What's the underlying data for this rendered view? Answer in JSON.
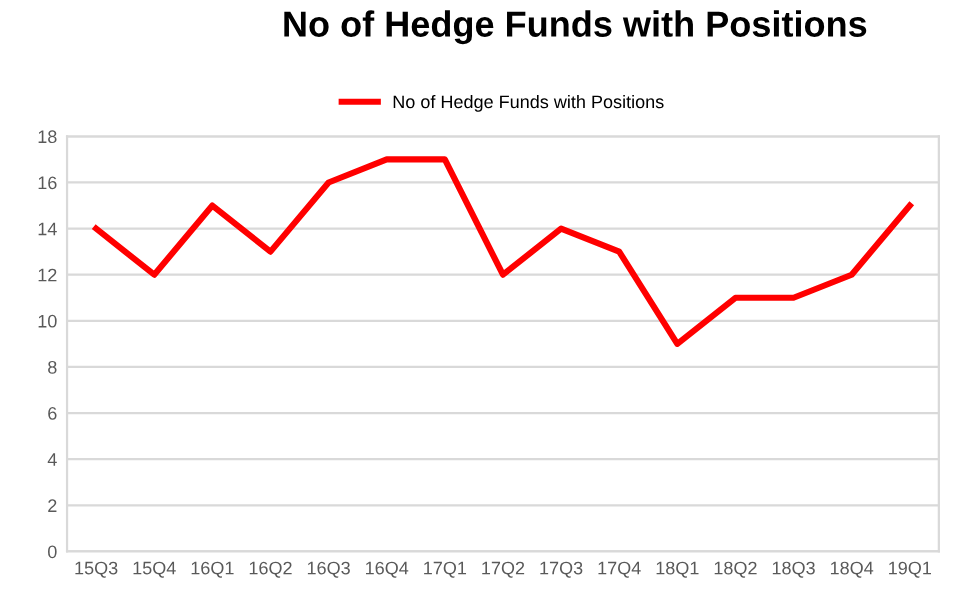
{
  "chart_data": {
    "type": "line",
    "title": "No of Hedge Funds with Positions",
    "categories": [
      "15Q3",
      "15Q4",
      "16Q1",
      "16Q2",
      "16Q3",
      "16Q4",
      "17Q1",
      "17Q2",
      "17Q3",
      "17Q4",
      "18Q1",
      "18Q2",
      "18Q3",
      "18Q4",
      "19Q1"
    ],
    "series": [
      {
        "name": "No of Hedge Funds with Positions",
        "color": "#ff0000",
        "values": [
          14,
          12,
          15,
          13,
          16,
          17,
          17,
          12,
          14,
          13,
          9,
          11,
          11,
          12,
          15
        ]
      }
    ],
    "ylim": [
      0,
      18
    ],
    "yticks": [
      0,
      2,
      4,
      6,
      8,
      10,
      12,
      14,
      16,
      18
    ],
    "grid": "y",
    "legend": "top",
    "marker": "none",
    "line_style": "solid"
  }
}
